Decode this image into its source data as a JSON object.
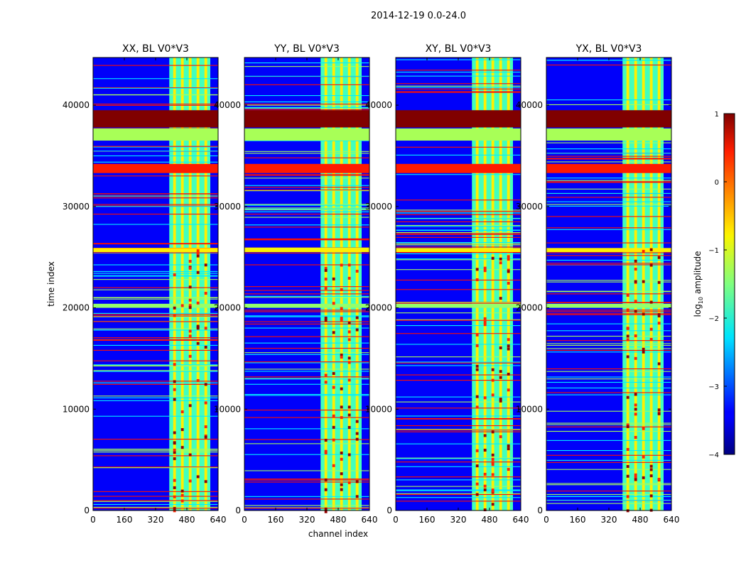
{
  "chart_data": {
    "type": "heatmap",
    "suptitle": "2014-12-19 0.0-24.0",
    "xlabel": "channel index",
    "ylabel": "time index",
    "xlim": [
      0,
      640
    ],
    "ylim": [
      0,
      44700
    ],
    "xticks": [
      0,
      160,
      320,
      480,
      640
    ],
    "yticks": [
      0,
      10000,
      20000,
      30000,
      40000
    ],
    "panels": [
      {
        "title": "XX, BL V0*V3",
        "polarization": "XX"
      },
      {
        "title": "YY, BL V0*V3",
        "polarization": "YY"
      },
      {
        "title": "XY, BL V0*V3",
        "polarization": "XY"
      },
      {
        "title": "YX, BL V0*V3",
        "polarization": "YX"
      }
    ],
    "colorbar": {
      "label_prefix": "log",
      "label_sub": "10",
      "label_suffix": " amplitude",
      "range": [
        -4,
        1
      ],
      "ticks": [
        1,
        0,
        -1,
        -2,
        -3,
        -4
      ],
      "tick_labels": [
        "1",
        "0",
        "−1",
        "−2",
        "−3",
        "−4"
      ],
      "colormap": "jet"
    },
    "flagged_time_bands": [
      {
        "from": 37800,
        "to": 39500,
        "level": 1.0
      },
      {
        "from": 36500,
        "to": 37700,
        "level": -1.3
      },
      {
        "from": 33300,
        "to": 34200,
        "level": 0.25
      },
      {
        "from": 25500,
        "to": 25900,
        "level": -0.8
      },
      {
        "from": 20000,
        "to": 20400,
        "level": -1.4
      }
    ],
    "active_channel_range": [
      390,
      600
    ]
  }
}
